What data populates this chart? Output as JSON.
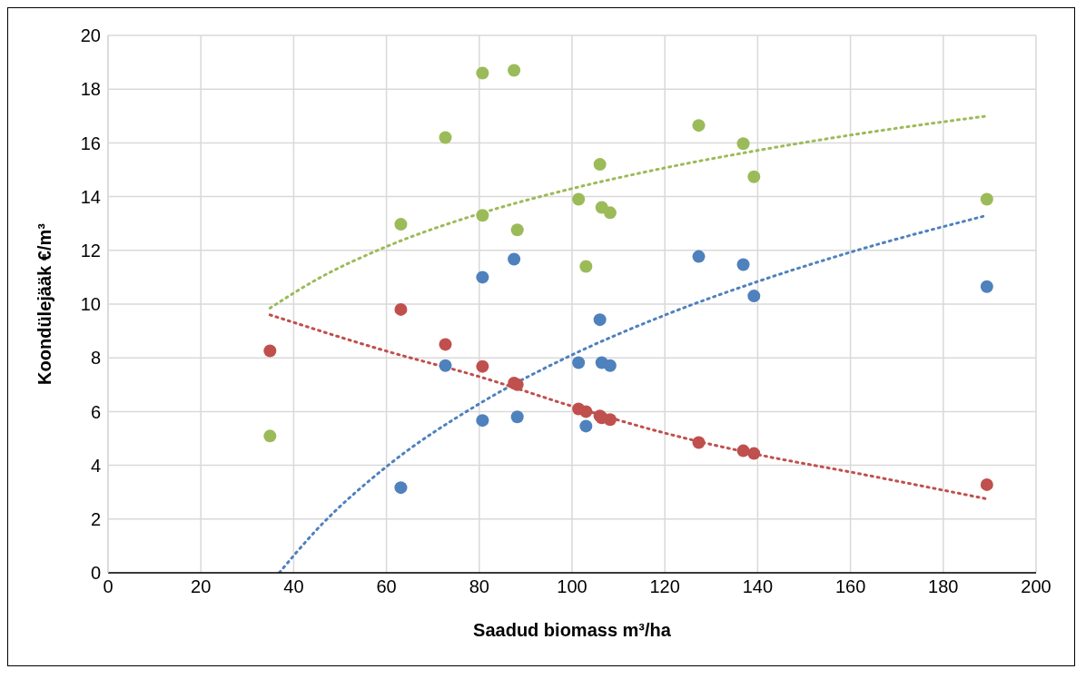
{
  "chart_data": {
    "type": "scatter",
    "xlabel": "Saadud biomass m³/ha",
    "ylabel": "Koondülejääk €/m³",
    "xlim": [
      0,
      200
    ],
    "xticks": [
      0,
      20,
      40,
      60,
      80,
      100,
      120,
      140,
      160,
      180,
      200
    ],
    "ylim": [
      0,
      20
    ],
    "yticks": [
      0,
      2,
      4,
      6,
      8,
      10,
      12,
      14,
      16,
      18,
      20
    ],
    "grid": true,
    "legend": false,
    "series": [
      {
        "type": "scatter",
        "marker": "circle",
        "color": "#9bbb59",
        "x": [
          34.9,
          63.1,
          72.7,
          80.7,
          80.7,
          87.5,
          88.2,
          101.4,
          103,
          106,
          106.4,
          108.2,
          127.3,
          136.9,
          139.2,
          189.4
        ],
        "values": [
          5.09,
          12.97,
          16.2,
          18.6,
          13.3,
          18.7,
          12.76,
          13.9,
          11.4,
          15.2,
          13.6,
          13.4,
          16.65,
          15.97,
          14.74,
          13.9
        ]
      },
      {
        "type": "scatter",
        "marker": "circle",
        "color": "#4f81bd",
        "x": [
          63.1,
          72.7,
          80.7,
          80.7,
          87.5,
          88.2,
          101.4,
          103,
          106,
          106.4,
          108.2,
          127.3,
          136.9,
          139.2,
          189.4
        ],
        "values": [
          3.17,
          7.71,
          11.0,
          5.67,
          11.67,
          5.8,
          7.82,
          5.46,
          9.42,
          7.82,
          7.71,
          11.77,
          11.47,
          10.3,
          10.65
        ]
      },
      {
        "type": "scatter",
        "marker": "circle",
        "color": "#c0504d",
        "x": [
          34.9,
          63.1,
          72.7,
          80.7,
          87.5,
          88.2,
          101.4,
          103,
          106,
          106.4,
          108.2,
          127.3,
          136.9,
          139.2,
          189.4
        ],
        "values": [
          8.26,
          9.8,
          8.5,
          7.68,
          7.06,
          7.0,
          6.1,
          6.0,
          5.84,
          5.77,
          5.7,
          4.85,
          4.54,
          4.44,
          3.28
        ]
      },
      {
        "type": "line",
        "marker": "none",
        "line_style": "dotted",
        "color": "#9bbb59",
        "x": [
          34.9,
          45,
          60,
          80,
          100,
          120,
          140,
          160,
          189.4
        ],
        "values": [
          9.85,
          10.92,
          12.14,
          13.36,
          14.3,
          15.07,
          15.72,
          16.29,
          17.0
        ]
      },
      {
        "type": "line",
        "marker": "none",
        "line_style": "dotted",
        "color": "#4f81bd",
        "x": [
          36.9,
          45,
          60,
          80,
          100,
          120,
          140,
          160,
          189.4
        ],
        "values": [
          0,
          1.61,
          3.95,
          6.29,
          8.11,
          9.59,
          10.84,
          11.93,
          13.3
        ]
      },
      {
        "type": "line",
        "marker": "none",
        "line_style": "dotted",
        "color": "#c0504d",
        "x": [
          34.9,
          60,
          80,
          100,
          120,
          140,
          160,
          189.4
        ],
        "values": [
          9.6,
          8.25,
          7.3,
          6.2,
          5.2,
          4.4,
          3.75,
          2.75
        ]
      }
    ]
  }
}
